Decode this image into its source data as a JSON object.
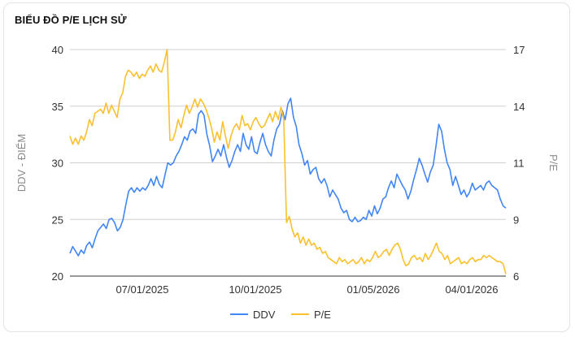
{
  "chart_data": {
    "type": "line",
    "title": "BIỂU ĐỒ P/E LỊCH SỬ",
    "ylabel": "DDV - ĐIỂM",
    "y2label": "P/E",
    "ylim": [
      20,
      40
    ],
    "y2lim": [
      6,
      17
    ],
    "yticks": [
      20,
      25,
      30,
      35,
      40
    ],
    "y2ticks": [
      6,
      9,
      11,
      14,
      17
    ],
    "x_tick_labels": [
      "07/01/2025",
      "10/01/2025",
      "01/05/2026",
      "04/01/2026"
    ],
    "legend": "bottom",
    "grid": true,
    "colors": {
      "DDV": "#4285f4",
      "P/E": "#fbc02d"
    },
    "series": [
      {
        "name": "DDV",
        "axis": "left",
        "values": [
          22.0,
          22.6,
          22.2,
          21.8,
          22.3,
          22.0,
          22.7,
          23.0,
          22.5,
          23.3,
          24.0,
          24.3,
          24.6,
          24.2,
          25.0,
          25.1,
          24.7,
          24.0,
          24.3,
          25.0,
          26.3,
          27.5,
          27.8,
          27.4,
          27.8,
          27.5,
          27.8,
          27.6,
          28.0,
          28.6,
          28.0,
          28.8,
          28.1,
          27.8,
          28.9,
          30.0,
          29.8,
          30.0,
          30.6,
          31.0,
          31.6,
          32.3,
          32.0,
          32.8,
          33.0,
          32.6,
          34.3,
          34.6,
          34.2,
          32.5,
          31.5,
          30.1,
          30.6,
          31.2,
          30.6,
          31.6,
          30.5,
          29.6,
          30.2,
          31.0,
          31.6,
          31.0,
          32.6,
          31.6,
          31.2,
          32.3,
          31.0,
          30.8,
          31.8,
          32.6,
          31.6,
          31.0,
          30.6,
          32.0,
          33.0,
          33.4,
          34.6,
          33.8,
          35.2,
          35.7,
          34.0,
          33.2,
          31.6,
          30.8,
          29.8,
          30.2,
          29.0,
          29.4,
          29.6,
          28.6,
          28.2,
          28.6,
          28.0,
          27.0,
          27.6,
          27.2,
          26.8,
          26.0,
          25.6,
          25.8,
          25.0,
          24.8,
          25.2,
          24.8,
          24.9,
          25.2,
          25.0,
          25.8,
          25.3,
          26.2,
          25.5,
          26.0,
          26.8,
          27.0,
          27.8,
          28.4,
          27.8,
          29.0,
          28.5,
          28.0,
          27.6,
          26.8,
          27.5,
          28.5,
          29.4,
          30.4,
          29.8,
          29.0,
          28.3,
          29.2,
          29.8,
          31.5,
          33.4,
          32.8,
          31.2,
          30.0,
          29.4,
          28.0,
          28.8,
          28.0,
          27.2,
          27.6,
          27.0,
          27.4,
          28.2,
          27.6,
          27.8,
          28.0,
          27.6,
          28.2,
          28.4,
          28.0,
          27.8,
          27.6,
          26.8,
          26.2,
          26.0
        ]
      },
      {
        "name": "P/E",
        "axis": "right",
        "values": [
          12.8,
          12.4,
          12.7,
          12.4,
          12.8,
          12.6,
          13.0,
          13.6,
          13.3,
          13.9,
          14.0,
          14.1,
          13.9,
          14.4,
          13.9,
          14.3,
          14.0,
          13.7,
          14.6,
          14.9,
          15.7,
          16.0,
          15.9,
          15.7,
          15.9,
          15.6,
          15.8,
          15.7,
          16.0,
          16.2,
          15.9,
          16.3,
          16.0,
          15.9,
          16.4,
          17.0,
          12.6,
          12.6,
          13.0,
          13.6,
          13.2,
          13.8,
          14.3,
          13.9,
          14.2,
          14.6,
          14.2,
          14.6,
          14.4,
          14.1,
          13.7,
          13.2,
          12.5,
          13.0,
          12.6,
          13.5,
          12.8,
          12.2,
          12.8,
          13.2,
          13.4,
          13.1,
          13.8,
          13.3,
          13.4,
          13.1,
          13.5,
          13.7,
          13.4,
          13.2,
          13.3,
          13.6,
          13.9,
          13.5,
          14.0,
          13.6,
          14.2,
          13.6,
          8.6,
          8.9,
          8.3,
          7.9,
          8.1,
          7.6,
          7.9,
          7.5,
          7.8,
          7.5,
          7.6,
          7.3,
          7.4,
          7.1,
          7.2,
          6.9,
          6.8,
          6.7,
          6.6,
          6.9,
          6.7,
          6.8,
          6.6,
          6.7,
          6.8,
          6.6,
          6.7,
          6.9,
          6.6,
          6.8,
          6.7,
          6.9,
          7.2,
          6.9,
          7.0,
          7.2,
          7.3,
          7.0,
          7.3,
          7.5,
          7.6,
          7.3,
          6.8,
          6.5,
          6.6,
          6.9,
          7.0,
          6.8,
          6.9,
          6.7,
          7.1,
          6.8,
          7.0,
          7.3,
          7.6,
          7.2,
          7.1,
          6.8,
          7.0,
          6.6,
          6.7,
          6.8,
          6.9,
          6.6,
          6.7,
          6.6,
          6.8,
          6.9,
          6.7,
          6.8,
          6.8,
          7.0,
          6.9,
          7.0,
          6.9,
          6.8,
          6.7,
          6.7,
          6.6,
          6.1
        ]
      }
    ]
  }
}
